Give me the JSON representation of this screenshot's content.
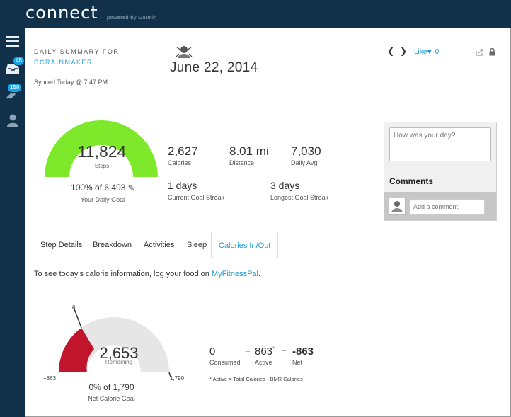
{
  "app": {
    "logo_text": "connect",
    "powered_by": "powered by Garmin"
  },
  "nav": {
    "inbox_badge": "48",
    "connections_badge": "158"
  },
  "header": {
    "daily_summary_label": "DAILY SUMMARY FOR",
    "username": "DCRAINMAKER",
    "synced": "Synced Today @ 7:47 PM",
    "date": "June 22, 2014",
    "like_label": "Like",
    "like_count": "0"
  },
  "steps": {
    "value": "11,824",
    "label": "Steps",
    "goal_text": "100% of 6,493",
    "goal_label": "Your Daily Goal",
    "progress_fraction": 1.0
  },
  "stats": {
    "calories_value": "2,627",
    "calories_label": "Calories",
    "distance_value": "8.01 mi",
    "distance_label": "Distance",
    "daily_avg_value": "7,030",
    "daily_avg_label": "Daily Avg",
    "current_streak_value": "1 days",
    "current_streak_label": "Current Goal Streak",
    "longest_streak_value": "3 days",
    "longest_streak_label": "Longest Goal Streak"
  },
  "comments": {
    "textarea_placeholder": "How was your day?",
    "title": "Comments",
    "input_placeholder": "Add a comment."
  },
  "tabs": [
    {
      "label": "Step Details"
    },
    {
      "label": "Breakdown"
    },
    {
      "label": "Activities"
    },
    {
      "label": "Sleep"
    },
    {
      "label": "Calories In/Out"
    }
  ],
  "calorie_info": {
    "text_before": "To see today's calorie information, log your food on ",
    "link": "MyFitnessPal",
    "text_after": "."
  },
  "calorie_gauge": {
    "min_label": "−863",
    "zero_label": "0",
    "max_label": "1,790",
    "value": "2,653",
    "value_label": "Remaining",
    "goal_text": "0% of 1,790",
    "goal_label": "Net Calorie Goal"
  },
  "calorie_summary": {
    "consumed_value": "0",
    "consumed_label": "Consumed",
    "minus": "−",
    "active_value": "863",
    "active_mark": "*",
    "active_label": "Active",
    "equals": "=",
    "net_value": "-863",
    "net_label": "Net",
    "footnote_before": "* Active = Total Calories - ",
    "footnote_bmr": "BMR",
    "footnote_after": " Calories"
  },
  "colors": {
    "nav_bg": "#11304a",
    "accent": "#1a9bd7",
    "steps_gauge": "#7ee82a",
    "calorie_gauge_red": "#c0152a",
    "gauge_track": "#e6e6e6"
  }
}
